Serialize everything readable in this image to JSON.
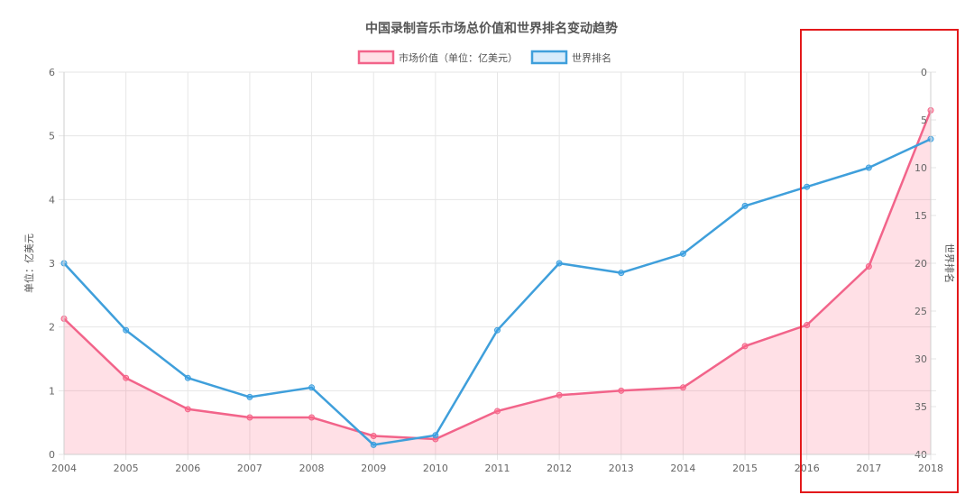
{
  "colors": {
    "market": "#f2648a",
    "market_fill": "rgba(255, 99, 132, 0.2)",
    "rank": "#3f9fdb",
    "rank_fill": "rgba(54, 162, 235, 0.2)",
    "grid": "#e6e6e6",
    "highlight": "#e3191b"
  },
  "chart_data": {
    "type": "line",
    "title": "中国录制音乐市场总价值和世界排名变动趋势",
    "categories": [
      "2004",
      "2005",
      "2006",
      "2007",
      "2008",
      "2009",
      "2010",
      "2011",
      "2012",
      "2013",
      "2014",
      "2015",
      "2016",
      "2017",
      "2018"
    ],
    "series": [
      {
        "name": "市场价值（单位：亿美元）",
        "axis": "left",
        "values": [
          2.13,
          1.2,
          0.71,
          0.58,
          0.58,
          0.29,
          0.24,
          0.68,
          0.93,
          1.0,
          1.05,
          1.7,
          2.03,
          2.95,
          5.4
        ],
        "fill": true
      },
      {
        "name": "世界排名",
        "axis": "right",
        "values": [
          20,
          27,
          32,
          34,
          33,
          39,
          38,
          27,
          20,
          21,
          19,
          14,
          12,
          10,
          7
        ],
        "fill": false
      }
    ],
    "ylabel": "单位：亿美元",
    "ylim": [
      0,
      6
    ],
    "yticks": [
      0,
      1,
      2,
      3,
      4,
      5,
      6
    ],
    "y2label": "世界排名",
    "y2lim": [
      0,
      40
    ],
    "y2_reversed": true,
    "y2ticks": [
      0,
      5,
      10,
      15,
      20,
      25,
      30,
      35,
      40
    ],
    "grid": true,
    "legend_position": "top",
    "highlight_range": [
      "2016",
      "2018"
    ]
  }
}
